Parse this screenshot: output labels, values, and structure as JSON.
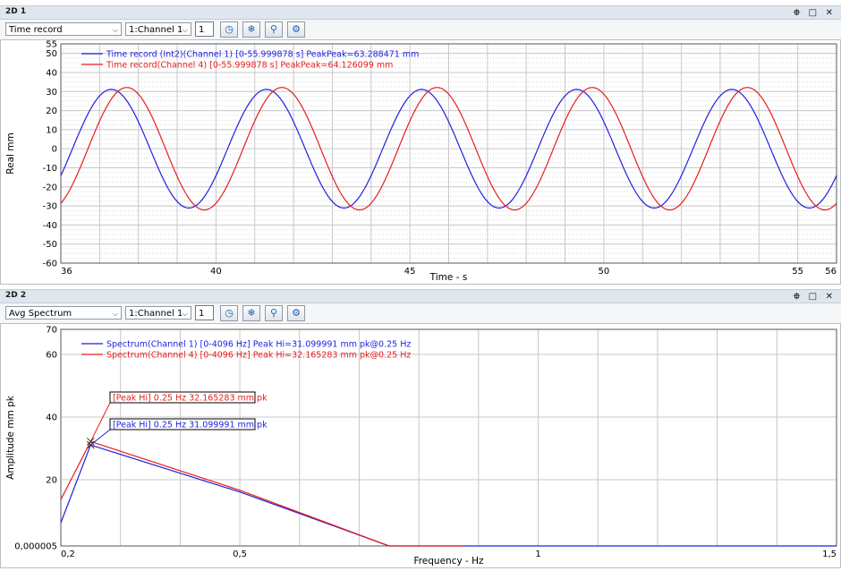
{
  "panel1": {
    "title": "2D 1",
    "type_select": "Time record",
    "channel_select": "1:Channel 1",
    "count_value": "1"
  },
  "panel2": {
    "title": "2D 2",
    "type_select": "Avg Spectrum",
    "channel_select": "1:Channel 1",
    "count_value": "1"
  },
  "window_icons": {
    "pin": "⯐",
    "restore": "□",
    "close": "✕"
  },
  "colors": {
    "blue": "#1f1fe0",
    "red": "#e81c1c",
    "grid_major": "#c8c8c8",
    "grid_minor": "#dcdcdc"
  },
  "chart_data": [
    {
      "type": "line",
      "xlabel": "Time - s",
      "ylabel": "Real mm",
      "xlim": [
        36,
        56
      ],
      "ylim": [
        -60,
        55
      ],
      "x_ticks": [
        36,
        40,
        45,
        50,
        55,
        56
      ],
      "y_ticks": [
        55,
        50,
        40,
        30,
        20,
        10,
        0,
        -10,
        -20,
        -30,
        -40,
        -50,
        -60
      ],
      "grid": true,
      "legend_position": "top-left",
      "series": [
        {
          "name": "Time record (Int2)(Channel 1) [0-55.999878 s] PeakPeak=63.288471 mm",
          "color": "#1f1fe0",
          "amplitude": 31.1,
          "frequency_hz": 0.25,
          "peak_time_s": 37.3
        },
        {
          "name": "Time record(Channel 4) [0-55.999878 s] PeakPeak=64.126099 mm",
          "color": "#e81c1c",
          "amplitude": 32.1,
          "frequency_hz": 0.25,
          "peak_time_s": 37.7
        }
      ]
    },
    {
      "type": "line",
      "xlabel": "Frequency - Hz",
      "ylabel": "Amplitude mm pk",
      "xlim": [
        0.2,
        1.5
      ],
      "x_ticks": [
        0.2,
        0.5,
        1,
        1.5
      ],
      "y_ticks": [
        70,
        60,
        40,
        20,
        5e-06
      ],
      "y_tick_labels": [
        "70",
        "60",
        "40",
        "20",
        "0,000005"
      ],
      "grid": true,
      "legend_position": "top-left",
      "series": [
        {
          "name": "Spectrum(Channel 1) [0-4096 Hz] Peak Hi=31.099991 mm pk@0.25 Hz",
          "color": "#1f1fe0",
          "x": [
            0.2,
            0.25,
            0.5,
            0.75,
            1.0,
            1.25,
            1.5
          ],
          "y": [
            7,
            31.1,
            16.3,
            5e-06,
            5e-06,
            5e-06,
            5e-06
          ]
        },
        {
          "name": "Spectrum(Channel 4) [0-4096 Hz] Peak Hi=32.165283 mm pk@0.25 Hz",
          "color": "#e81c1c",
          "x": [
            0.2,
            0.25,
            0.5,
            0.75,
            0.875
          ],
          "y": [
            14,
            32.2,
            16.8,
            5e-06,
            5e-06
          ]
        }
      ],
      "annotations": [
        {
          "text": "[Peak Hi] 0.25 Hz 32.165283 mm pk",
          "color": "#e81c1c"
        },
        {
          "text": "[Peak Hi] 0.25 Hz 31.099991 mm pk",
          "color": "#1f1fe0"
        }
      ]
    }
  ]
}
